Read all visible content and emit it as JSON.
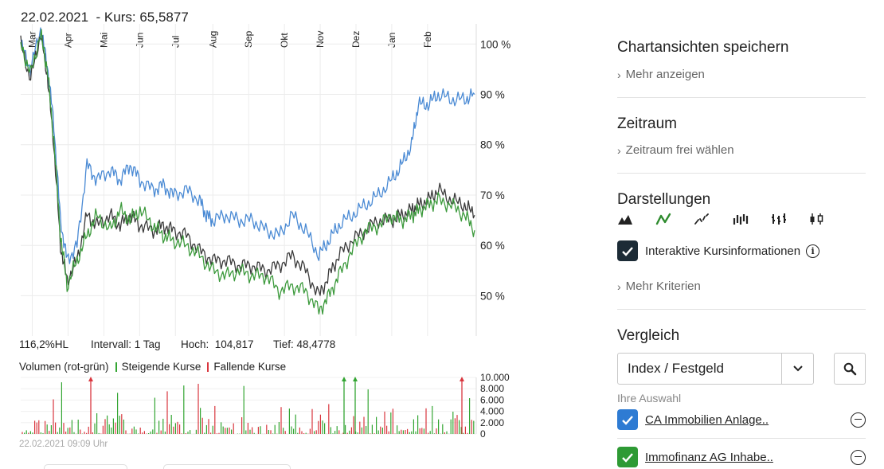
{
  "header": {
    "date": "22.02.2021",
    "price_label": "  - Kurs: 65,5877"
  },
  "stats": {
    "hl": "116,2%HL",
    "interval": "Intervall: 1 Tag",
    "high": "Hoch:  104,817",
    "low": "Tief: 48,4778"
  },
  "volume_legend": {
    "title": "Volumen (rot-grün)",
    "rising": "Steigende Kurse",
    "falling": "Fallende Kurse",
    "rising_color": "#33a532",
    "falling_color": "#d9363e"
  },
  "timestamp": "22.02.2021 09:09 Uhr",
  "chart_data": [
    {
      "type": "line",
      "x_ticks": [
        "Mar",
        "Apr",
        "Mai",
        "Jun",
        "Jul",
        "Aug",
        "Sep",
        "Okt",
        "Nov",
        "Dez",
        "Jan",
        "Feb"
      ],
      "y_ticks": [
        "100 %",
        "90 %",
        "80 %",
        "70 %",
        "60 %",
        "50 %"
      ],
      "ylim": [
        42,
        104
      ],
      "grid": true,
      "series": [
        {
          "color": "#4a8ad4",
          "values": [
            [
              0,
              100
            ],
            [
              0.3,
              95
            ],
            [
              0.6,
              103
            ],
            [
              0.8,
              96
            ],
            [
              1.0,
              84
            ],
            [
              1.2,
              65
            ],
            [
              1.4,
              57
            ],
            [
              1.7,
              60
            ],
            [
              2.0,
              76
            ],
            [
              2.3,
              73
            ],
            [
              2.7,
              75
            ],
            [
              3.0,
              73
            ],
            [
              3.3,
              76
            ],
            [
              3.6,
              73
            ],
            [
              4.0,
              71
            ],
            [
              4.3,
              72
            ],
            [
              4.6,
              70
            ],
            [
              5.0,
              71
            ],
            [
              5.4,
              69
            ],
            [
              5.6,
              66
            ],
            [
              5.8,
              65
            ],
            [
              6.2,
              66
            ],
            [
              6.6,
              65
            ],
            [
              7.0,
              65
            ],
            [
              7.4,
              63
            ],
            [
              7.8,
              62
            ],
            [
              8.2,
              66
            ],
            [
              8.6,
              63
            ],
            [
              9.0,
              58
            ],
            [
              9.3,
              61
            ],
            [
              9.6,
              64
            ],
            [
              10.0,
              66
            ],
            [
              10.4,
              68
            ],
            [
              10.8,
              70
            ],
            [
              11.2,
              73
            ],
            [
              11.5,
              76
            ],
            [
              11.8,
              80
            ],
            [
              12.0,
              88
            ],
            [
              12.3,
              88
            ],
            [
              12.6,
              90
            ],
            [
              13.0,
              89
            ],
            [
              13.4,
              89
            ],
            [
              13.7,
              90
            ]
          ]
        },
        {
          "color": "#3a3a3a",
          "values": [
            [
              0,
              100
            ],
            [
              0.3,
              93
            ],
            [
              0.6,
              102
            ],
            [
              0.8,
              94
            ],
            [
              1.0,
              80
            ],
            [
              1.2,
              60
            ],
            [
              1.4,
              53
            ],
            [
              1.7,
              57
            ],
            [
              2.0,
              66
            ],
            [
              2.3,
              64
            ],
            [
              2.7,
              66
            ],
            [
              3.0,
              64
            ],
            [
              3.3,
              66
            ],
            [
              3.6,
              64
            ],
            [
              4.0,
              63
            ],
            [
              4.3,
              64
            ],
            [
              4.6,
              63
            ],
            [
              5.0,
              62
            ],
            [
              5.4,
              59
            ],
            [
              5.8,
              57
            ],
            [
              6.2,
              57
            ],
            [
              6.6,
              56
            ],
            [
              7.0,
              56
            ],
            [
              7.4,
              55
            ],
            [
              7.8,
              56
            ],
            [
              8.2,
              58
            ],
            [
              8.6,
              55
            ],
            [
              9.0,
              50
            ],
            [
              9.3,
              54
            ],
            [
              9.6,
              58
            ],
            [
              10.0,
              61
            ],
            [
              10.4,
              63
            ],
            [
              10.8,
              65
            ],
            [
              11.2,
              65
            ],
            [
              11.5,
              66
            ],
            [
              11.8,
              67
            ],
            [
              12.0,
              68
            ],
            [
              12.3,
              69
            ],
            [
              12.6,
              71
            ],
            [
              13.0,
              69
            ],
            [
              13.4,
              68
            ],
            [
              13.7,
              66
            ]
          ]
        },
        {
          "color": "#3c9a3c",
          "values": [
            [
              0,
              100
            ],
            [
              0.3,
              94
            ],
            [
              0.6,
              102
            ],
            [
              0.8,
              95
            ],
            [
              1.0,
              81
            ],
            [
              1.2,
              62
            ],
            [
              1.4,
              52
            ],
            [
              1.7,
              57
            ],
            [
              2.0,
              62
            ],
            [
              2.3,
              66
            ],
            [
              2.7,
              63
            ],
            [
              3.0,
              67
            ],
            [
              3.3,
              65
            ],
            [
              3.6,
              67
            ],
            [
              4.0,
              64
            ],
            [
              4.3,
              62
            ],
            [
              4.6,
              61
            ],
            [
              5.0,
              60
            ],
            [
              5.4,
              58
            ],
            [
              5.8,
              55
            ],
            [
              6.2,
              54
            ],
            [
              6.6,
              55
            ],
            [
              7.0,
              54
            ],
            [
              7.4,
              54
            ],
            [
              7.8,
              51
            ],
            [
              8.2,
              52
            ],
            [
              8.6,
              51
            ],
            [
              9.0,
              47
            ],
            [
              9.3,
              50
            ],
            [
              9.6,
              54
            ],
            [
              10.0,
              59
            ],
            [
              10.4,
              63
            ],
            [
              10.8,
              64
            ],
            [
              11.2,
              66
            ],
            [
              11.5,
              65
            ],
            [
              11.8,
              66
            ],
            [
              12.0,
              67
            ],
            [
              12.3,
              68
            ],
            [
              12.6,
              69
            ],
            [
              13.0,
              68
            ],
            [
              13.4,
              66
            ],
            [
              13.7,
              63
            ]
          ]
        }
      ]
    },
    {
      "type": "bar",
      "y_ticks": [
        "10.000",
        "8.000",
        "6.000",
        "4.000",
        "2.000",
        "0"
      ],
      "ylim": [
        0,
        10000
      ],
      "rising_color": "#33a532",
      "falling_color": "#d9363e"
    }
  ],
  "sidebar": {
    "save_title": "Chartansichten speichern",
    "more_show": "Mehr anzeigen",
    "period_title": "Zeitraum",
    "period_link": "Zeitraum frei wählen",
    "display_title": "Darstellungen",
    "interactive_label": "Interaktive Kursinformationen",
    "more_criteria": "Mehr Kriterien",
    "compare_title": "Vergleich",
    "compare_select": "Index / Festgeld",
    "selection_label": "Ihre Auswahl",
    "comparisons": [
      {
        "name": "CA Immobilien Anlage..",
        "color": "#2e7bd3"
      },
      {
        "name": "Immofinanz AG Inhabe..",
        "color": "#2e9a34"
      }
    ]
  }
}
